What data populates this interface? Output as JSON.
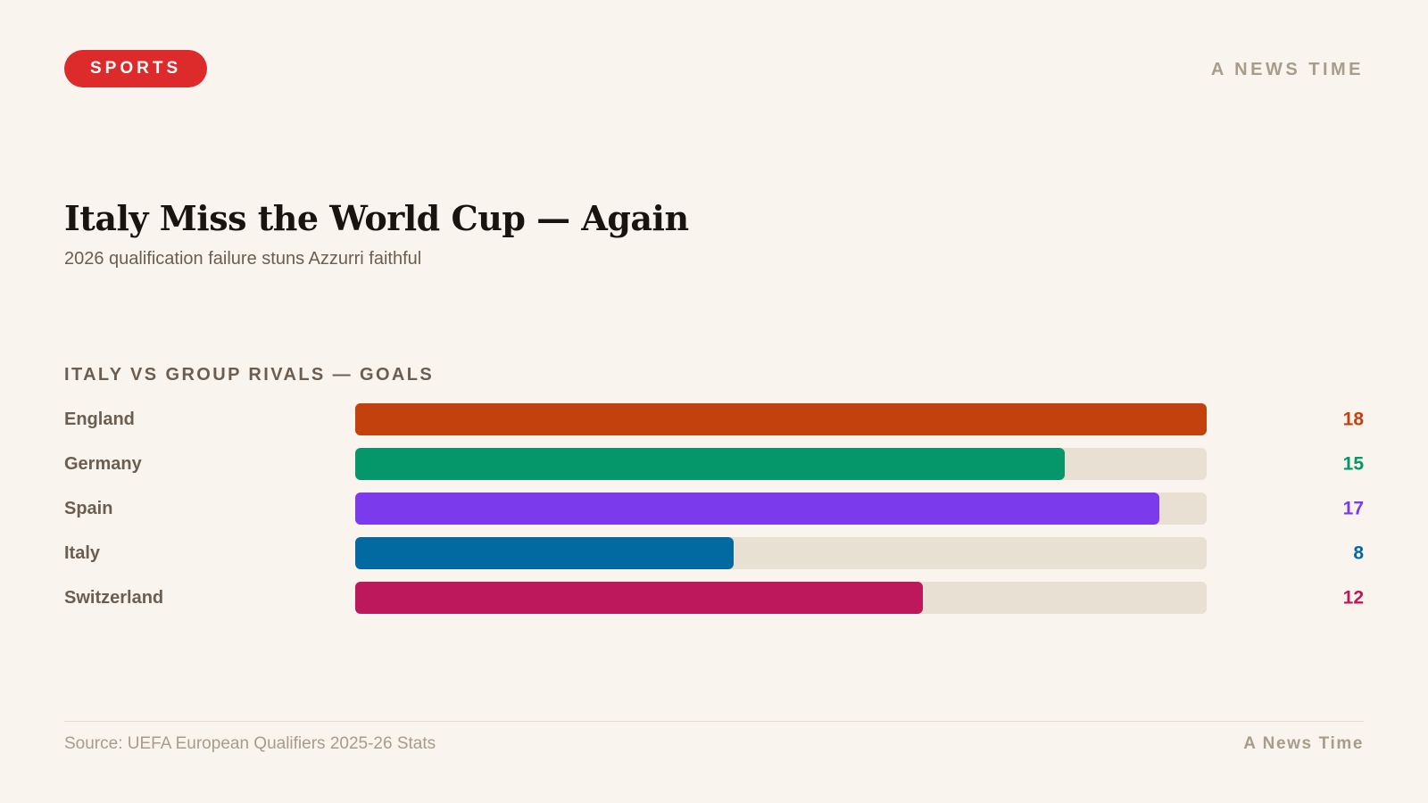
{
  "header": {
    "section_badge": "SPORTS",
    "brand": "A NEWS TIME",
    "badge_color": "#dd2a2a"
  },
  "article": {
    "headline": "Italy Miss the World Cup — Again",
    "subtitle": "2026 qualification failure stuns Azzurri faithful"
  },
  "chart_data": {
    "type": "bar",
    "orientation": "horizontal",
    "title": "ITALY VS GROUP RIVALS — GOALS",
    "categories": [
      "England",
      "Germany",
      "Spain",
      "Italy",
      "Switzerland"
    ],
    "values": [
      18,
      15,
      17,
      8,
      12
    ],
    "colors": [
      "#c2410c",
      "#059669",
      "#7c3aed",
      "#0369a1",
      "#be185d"
    ],
    "track_color": "#e8e0d2",
    "xlim": [
      0,
      18
    ],
    "grid": false,
    "legend": "none",
    "value_labels": "right"
  },
  "footer": {
    "source": "Source: UEFA European Qualifiers 2025-26 Stats",
    "brand": "A News Time"
  }
}
